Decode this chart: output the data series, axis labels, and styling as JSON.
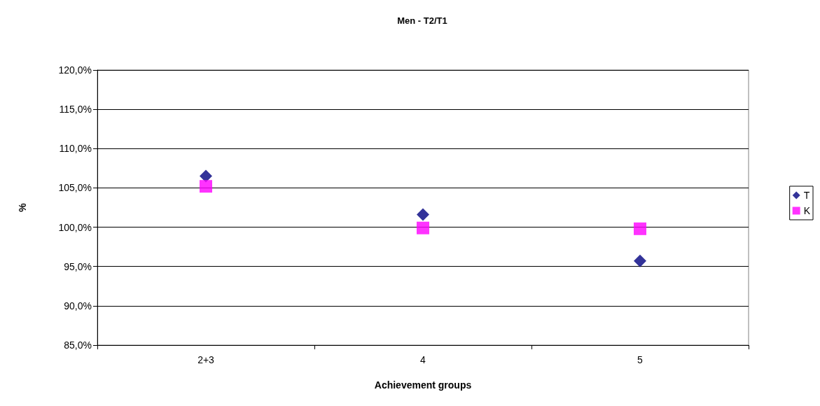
{
  "chart_data": {
    "type": "scatter",
    "title": "Men - T2/T1",
    "xlabel": "Achievement groups",
    "ylabel": "%",
    "categories": [
      "2+3",
      "4",
      "5"
    ],
    "series": [
      {
        "name": "T",
        "color": "#000080",
        "marker": "diamond",
        "values": [
          106.5,
          101.6,
          95.7
        ]
      },
      {
        "name": "K",
        "color": "#ff00ff",
        "marker": "square",
        "values": [
          105.2,
          99.9,
          99.8
        ]
      }
    ],
    "ylim": [
      85,
      120
    ],
    "yticks": [
      {
        "value": 85,
        "label": "85,0%"
      },
      {
        "value": 90,
        "label": "90,0%"
      },
      {
        "value": 95,
        "label": "95,0%"
      },
      {
        "value": 100,
        "label": "100,0%"
      },
      {
        "value": 105,
        "label": "105,0%"
      },
      {
        "value": 110,
        "label": "110,0%"
      },
      {
        "value": 115,
        "label": "115,0%"
      },
      {
        "value": 120,
        "label": "120,0%"
      }
    ],
    "grid": "y",
    "legend": "right"
  }
}
